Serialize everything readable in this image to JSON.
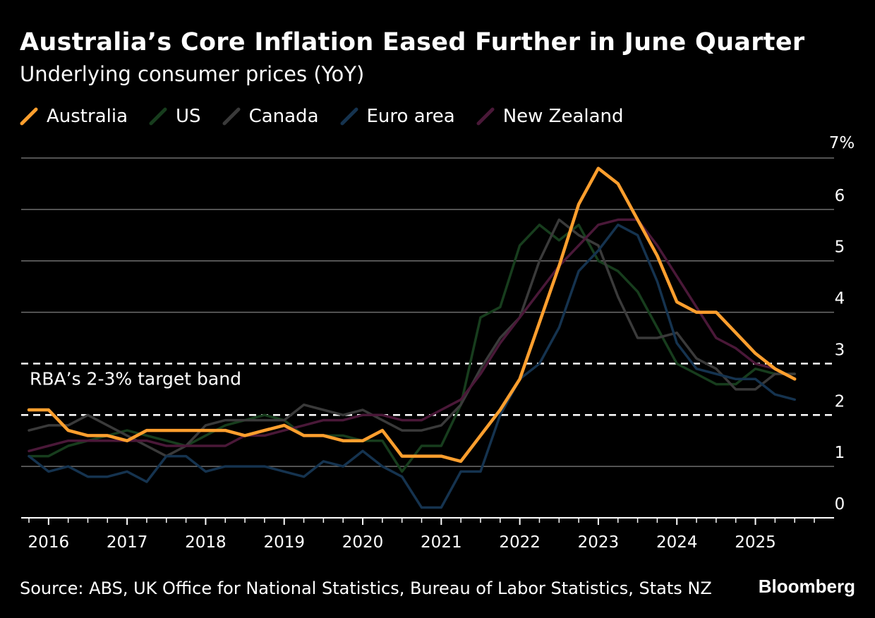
{
  "header": {
    "title": "Australia’s Core Inflation Eased Further in June Quarter",
    "subtitle": "Underlying consumer prices (YoY)"
  },
  "footer": {
    "source": "Source: ABS, UK Office for National Statistics, Bureau of Labor Statistics, Stats NZ",
    "brand": "Bloomberg"
  },
  "chart_data": {
    "type": "line",
    "title": "Australia’s Core Inflation Eased Further in June Quarter",
    "subtitle": "Underlying consumer prices (YoY)",
    "ylim": [
      0,
      7
    ],
    "y_ticks": [
      0,
      1,
      2,
      3,
      4,
      5,
      6,
      7
    ],
    "y_tick_labels": [
      "0",
      "1",
      "2",
      "3",
      "4",
      "5",
      "6",
      "7%"
    ],
    "x_range": [
      2015.75,
      2025.75
    ],
    "x_ticks": [
      2016,
      2017,
      2018,
      2019,
      2020,
      2021,
      2022,
      2023,
      2024,
      2025
    ],
    "x_tick_labels": [
      "2016",
      "2017",
      "2018",
      "2019",
      "2020",
      "2021",
      "2022",
      "2023",
      "2024",
      "2025"
    ],
    "grid": true,
    "legend_position": "top-left",
    "target_band": {
      "lower": 2,
      "upper": 3,
      "label": "RBA’s 2-3% target band"
    },
    "series": [
      {
        "name": "US",
        "color": "#173d1d",
        "x": [
          2015.75,
          2016.0,
          2016.25,
          2016.5,
          2016.75,
          2017.0,
          2017.25,
          2017.5,
          2017.75,
          2018.0,
          2018.25,
          2018.5,
          2018.75,
          2019.0,
          2019.25,
          2019.5,
          2019.75,
          2020.0,
          2020.25,
          2020.5,
          2020.75,
          2021.0,
          2021.25,
          2021.5,
          2021.75,
          2022.0,
          2022.25,
          2022.5,
          2022.75,
          2023.0,
          2023.25,
          2023.5,
          2023.75,
          2024.0,
          2024.25,
          2024.5,
          2024.75,
          2025.0,
          2025.25,
          2025.5
        ],
        "y": [
          1.2,
          1.2,
          1.4,
          1.5,
          1.6,
          1.7,
          1.6,
          1.5,
          1.4,
          1.6,
          1.8,
          1.9,
          2.0,
          1.9,
          1.6,
          1.6,
          1.6,
          1.5,
          1.5,
          0.9,
          1.4,
          1.4,
          2.2,
          3.9,
          4.1,
          5.3,
          5.7,
          5.4,
          5.7,
          5.0,
          4.8,
          4.4,
          3.7,
          3.0,
          2.8,
          2.6,
          2.6,
          2.9,
          2.8,
          2.8
        ]
      },
      {
        "name": "Canada",
        "color": "#3a3a3a",
        "x": [
          2015.75,
          2016.0,
          2016.25,
          2016.5,
          2016.75,
          2017.0,
          2017.25,
          2017.5,
          2017.75,
          2018.0,
          2018.25,
          2018.5,
          2018.75,
          2019.0,
          2019.25,
          2019.5,
          2019.75,
          2020.0,
          2020.25,
          2020.5,
          2020.75,
          2021.0,
          2021.25,
          2021.5,
          2021.75,
          2022.0,
          2022.25,
          2022.5,
          2022.75,
          2023.0,
          2023.25,
          2023.5,
          2023.75,
          2024.0,
          2024.25,
          2024.5,
          2024.75,
          2025.0,
          2025.25,
          2025.5
        ],
        "y": [
          1.7,
          1.8,
          1.8,
          2.0,
          1.8,
          1.6,
          1.4,
          1.2,
          1.4,
          1.8,
          1.9,
          1.9,
          1.9,
          1.9,
          2.2,
          2.1,
          2.0,
          2.1,
          1.9,
          1.7,
          1.7,
          1.8,
          2.2,
          2.9,
          3.5,
          3.9,
          5.0,
          5.8,
          5.5,
          5.3,
          4.3,
          3.5,
          3.5,
          3.6,
          3.1,
          2.9,
          2.5,
          2.5,
          2.8,
          2.8
        ]
      },
      {
        "name": "Euro area",
        "color": "#15334f",
        "x": [
          2015.75,
          2016.0,
          2016.25,
          2016.5,
          2016.75,
          2017.0,
          2017.25,
          2017.5,
          2017.75,
          2018.0,
          2018.25,
          2018.5,
          2018.75,
          2019.0,
          2019.25,
          2019.5,
          2019.75,
          2020.0,
          2020.25,
          2020.5,
          2020.75,
          2021.0,
          2021.25,
          2021.5,
          2021.75,
          2022.0,
          2022.25,
          2022.5,
          2022.75,
          2023.0,
          2023.25,
          2023.5,
          2023.75,
          2024.0,
          2024.25,
          2024.5,
          2024.75,
          2025.0,
          2025.25,
          2025.5
        ],
        "y": [
          1.2,
          0.9,
          1.0,
          0.8,
          0.8,
          0.9,
          0.7,
          1.2,
          1.2,
          0.9,
          1.0,
          1.0,
          1.0,
          0.9,
          0.8,
          1.1,
          1.0,
          1.3,
          1.0,
          0.8,
          0.2,
          0.2,
          0.9,
          0.9,
          2.0,
          2.7,
          3.0,
          3.7,
          4.8,
          5.2,
          5.7,
          5.5,
          4.6,
          3.4,
          2.9,
          2.8,
          2.7,
          2.7,
          2.4,
          2.3
        ]
      },
      {
        "name": "New Zealand",
        "color": "#4a1838",
        "x": [
          2015.75,
          2016.0,
          2016.25,
          2016.5,
          2016.75,
          2017.0,
          2017.25,
          2017.5,
          2017.75,
          2018.0,
          2018.25,
          2018.5,
          2018.75,
          2019.0,
          2019.25,
          2019.5,
          2019.75,
          2020.0,
          2020.25,
          2020.5,
          2020.75,
          2021.0,
          2021.25,
          2021.5,
          2021.75,
          2022.0,
          2022.25,
          2022.5,
          2022.75,
          2023.0,
          2023.25,
          2023.5,
          2023.75,
          2024.0,
          2024.25,
          2024.5,
          2024.75,
          2025.0,
          2025.25,
          2025.5
        ],
        "y": [
          1.3,
          1.4,
          1.5,
          1.5,
          1.5,
          1.5,
          1.5,
          1.4,
          1.4,
          1.4,
          1.4,
          1.6,
          1.6,
          1.7,
          1.8,
          1.9,
          1.9,
          2.0,
          2.0,
          1.9,
          1.9,
          2.1,
          2.3,
          2.8,
          3.4,
          3.9,
          4.4,
          4.9,
          5.3,
          5.7,
          5.8,
          5.8,
          5.3,
          4.7,
          4.1,
          3.5,
          3.3,
          3.0,
          2.9,
          2.7
        ]
      },
      {
        "name": "Australia",
        "color": "#ff9f2e",
        "x": [
          2015.75,
          2016.0,
          2016.25,
          2016.5,
          2016.75,
          2017.0,
          2017.25,
          2017.5,
          2017.75,
          2018.0,
          2018.25,
          2018.5,
          2018.75,
          2019.0,
          2019.25,
          2019.5,
          2019.75,
          2020.0,
          2020.25,
          2020.5,
          2020.75,
          2021.0,
          2021.25,
          2021.5,
          2021.75,
          2022.0,
          2022.25,
          2022.5,
          2022.75,
          2023.0,
          2023.25,
          2023.5,
          2023.75,
          2024.0,
          2024.25,
          2024.5,
          2024.75,
          2025.0,
          2025.25,
          2025.5
        ],
        "y": [
          2.1,
          2.1,
          1.7,
          1.6,
          1.6,
          1.5,
          1.7,
          1.7,
          1.7,
          1.7,
          1.7,
          1.6,
          1.7,
          1.8,
          1.6,
          1.6,
          1.5,
          1.5,
          1.7,
          1.2,
          1.2,
          1.2,
          1.1,
          1.6,
          2.1,
          2.7,
          3.8,
          4.9,
          6.1,
          6.8,
          6.5,
          5.8,
          5.1,
          4.2,
          4.0,
          4.0,
          3.6,
          3.2,
          2.9,
          2.7
        ]
      }
    ]
  }
}
